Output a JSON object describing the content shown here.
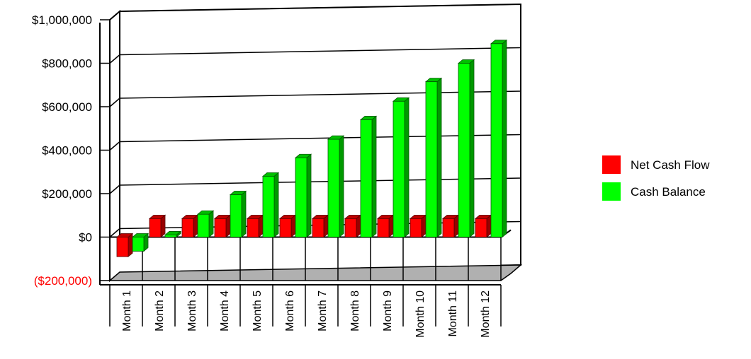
{
  "chart_data": {
    "type": "bar",
    "title": "",
    "xlabel": "",
    "ylabel": "",
    "categories": [
      "Month 1",
      "Month 2",
      "Month 3",
      "Month 4",
      "Month 5",
      "Month 6",
      "Month 7",
      "Month 8",
      "Month 9",
      "Month 10",
      "Month 11",
      "Month 12"
    ],
    "series": [
      {
        "name": "Net Cash Flow",
        "color": "#ff0000",
        "values": [
          -90000,
          85000,
          85000,
          85000,
          85000,
          85000,
          85000,
          85000,
          85000,
          85000,
          85000,
          85000
        ]
      },
      {
        "name": "Cash Balance",
        "color": "#00ff00",
        "values": [
          -65000,
          10000,
          105000,
          195000,
          280000,
          365000,
          450000,
          540000,
          625000,
          715000,
          800000,
          890000
        ]
      }
    ],
    "ylim": [
      -200000,
      1000000
    ],
    "y_ticks": [
      {
        "value": 1000000,
        "label": "$1,000,000"
      },
      {
        "value": 800000,
        "label": "$800,000"
      },
      {
        "value": 600000,
        "label": "$600,000"
      },
      {
        "value": 400000,
        "label": "$400,000"
      },
      {
        "value": 200000,
        "label": "$200,000"
      },
      {
        "value": 0,
        "label": "$0"
      },
      {
        "value": -200000,
        "label": "($200,000)"
      }
    ],
    "negative_label_color": "#ff0000",
    "grid": true,
    "three_d": true,
    "legend_position": "right"
  }
}
